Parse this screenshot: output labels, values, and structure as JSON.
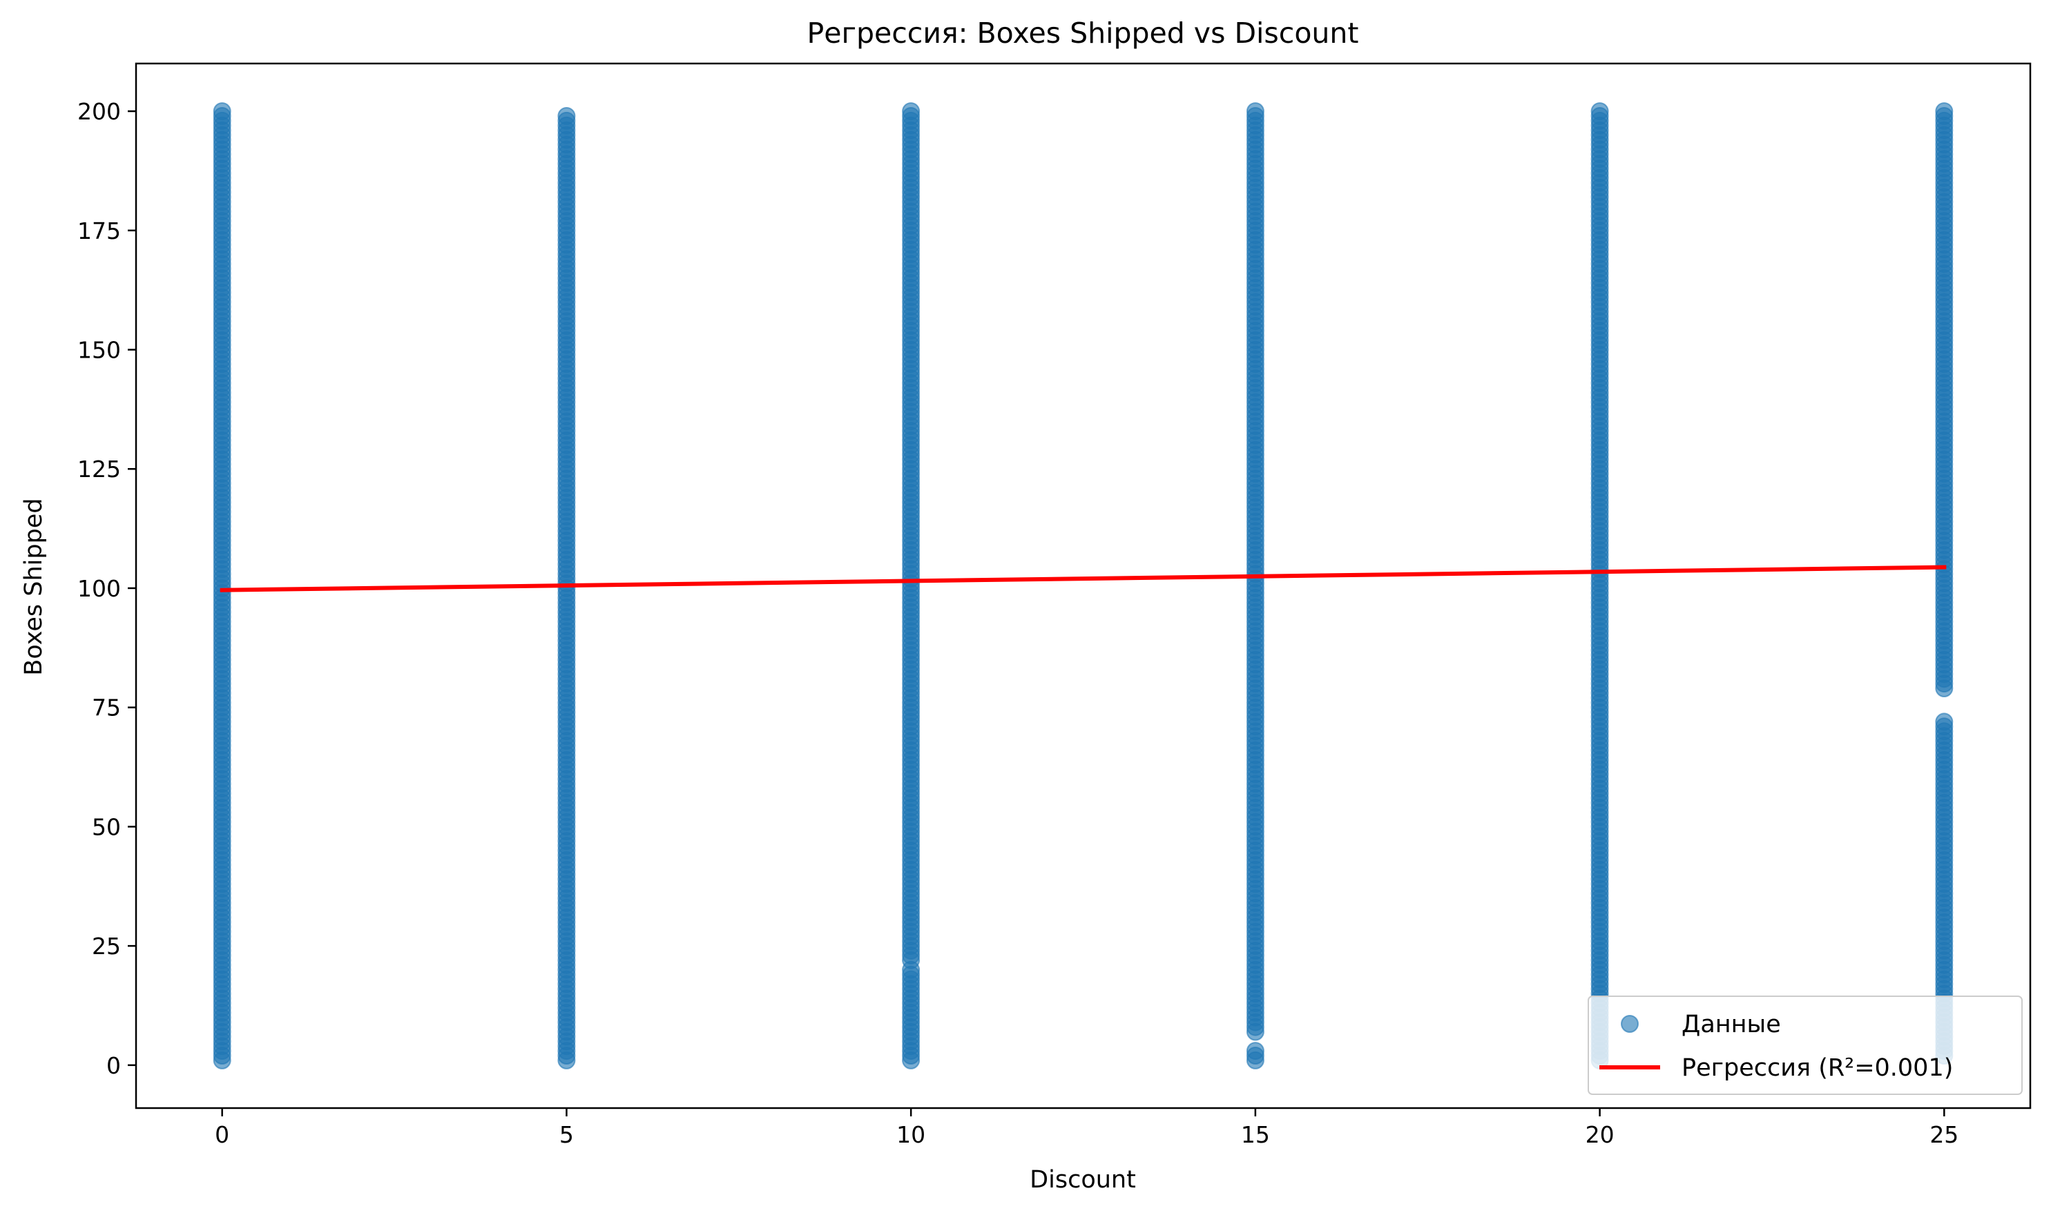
{
  "chart_data": {
    "type": "scatter",
    "title": "Регрессия: Boxes Shipped vs Discount",
    "xlabel": "Discount",
    "ylabel": "Boxes Shipped",
    "xlim": [
      -1.25,
      26.25
    ],
    "ylim": [
      -9,
      210
    ],
    "x_ticks": [
      0,
      5,
      10,
      15,
      20,
      25
    ],
    "y_ticks": [
      0,
      25,
      50,
      75,
      100,
      125,
      150,
      175,
      200
    ],
    "grid": false,
    "legend_position": "lower right",
    "series": [
      {
        "name": "Данные",
        "kind": "scatter",
        "color": "#1f77b4",
        "alpha": 0.6,
        "groups": [
          {
            "x": 0,
            "y_ranges": [
              [
                1,
                200
              ]
            ]
          },
          {
            "x": 5,
            "y_ranges": [
              [
                1,
                199
              ]
            ]
          },
          {
            "x": 10,
            "y_ranges": [
              [
                1,
                20
              ],
              [
                22,
                200
              ]
            ]
          },
          {
            "x": 15,
            "y_ranges": [
              [
                1,
                3
              ],
              [
                7,
                200
              ]
            ]
          },
          {
            "x": 20,
            "y_ranges": [
              [
                1,
                200
              ]
            ]
          },
          {
            "x": 25,
            "y_ranges": [
              [
                2,
                72
              ],
              [
                79,
                200
              ]
            ]
          }
        ]
      },
      {
        "name": "Регрессия (R²=0.001)",
        "kind": "line",
        "color": "#ff0000",
        "x": [
          0,
          25
        ],
        "y": [
          99.6,
          104.4
        ]
      }
    ]
  }
}
